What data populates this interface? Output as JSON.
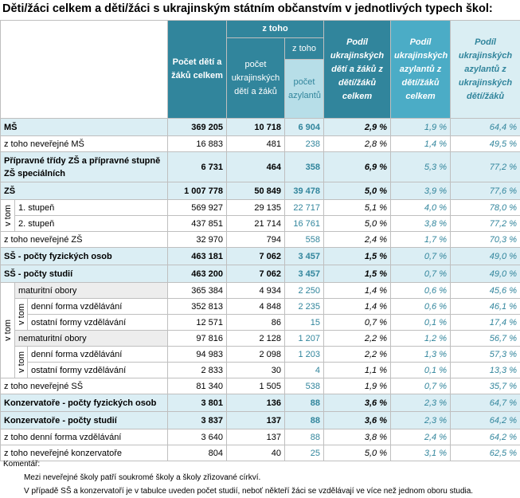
{
  "title": "Děti/žáci celkem a děti/žáci s ukrajinským státním občanstvím v jednotlivých typech škol:",
  "header": {
    "col_total": "Počet dětí a žáků celkem",
    "z_toho": "z toho",
    "col_ukr": "počet ukrajinských dětí a žáků",
    "z_toho_2": "z toho",
    "col_azyl": "počet azylantů",
    "col_share_ukr": "Podíl ukrajinských dětí a žáků z dětí/žáků celkem",
    "col_share_azyl": "Podíl ukrajinských azylantů z dětí/žáků celkem",
    "col_share_azyl_ukr": "Podíl ukrajinských azylantů z ukrajinských dětí/žáků"
  },
  "rows": [
    {
      "label": "MŠ",
      "bold": true,
      "values": [
        "369 205",
        "10 718",
        "6 904",
        "2,9 %",
        "1,9 %",
        "64,4 %"
      ]
    },
    {
      "label": "z toho neveřejné MŠ",
      "values": [
        "16 883",
        "481",
        "238",
        "2,8 %",
        "1,4 %",
        "49,5 %"
      ]
    },
    {
      "label": "Přípravné třídy ZŠ a přípravné stupně ZŠ speciálních",
      "bold": true,
      "tall": true,
      "values": [
        "6 731",
        "464",
        "358",
        "6,9 %",
        "5,3 %",
        "77,2 %"
      ]
    },
    {
      "label": "ZŠ",
      "bold": true,
      "values": [
        "1 007 778",
        "50 849",
        "39 478",
        "5,0 %",
        "3,9 %",
        "77,6 %"
      ]
    },
    {
      "group_label": "v tom",
      "rows": [
        {
          "label": "1. stupeň",
          "values": [
            "569 927",
            "29 135",
            "22 717",
            "5,1 %",
            "4,0 %",
            "78,0 %"
          ]
        },
        {
          "label": "2. stupeň",
          "values": [
            "437 851",
            "21 714",
            "16 761",
            "5,0 %",
            "3,8 %",
            "77,2 %"
          ]
        }
      ]
    },
    {
      "label": "z toho neveřejné ZŠ",
      "values": [
        "32 970",
        "794",
        "558",
        "2,4 %",
        "1,7 %",
        "70,3 %"
      ]
    },
    {
      "label": "SŠ - počty fyzických osob",
      "bold": true,
      "values": [
        "463 181",
        "7 062",
        "3 457",
        "1,5 %",
        "0,7 %",
        "49,0 %"
      ]
    },
    {
      "label": "SŠ - počty studií",
      "bold": true,
      "values": [
        "463 200",
        "7 062",
        "3 457",
        "1,5 %",
        "0,7 %",
        "49,0 %"
      ]
    },
    {
      "group_label": "v tom",
      "rows": [
        {
          "label": "maturitní obory",
          "shaded": true,
          "values": [
            "365 384",
            "4 934",
            "2 250",
            "1,4 %",
            "0,6 %",
            "45,6 %"
          ]
        },
        {
          "group_label": "v tom",
          "rows": [
            {
              "label": "denní forma vzdělávání",
              "values": [
                "352 813",
                "4 848",
                "2 235",
                "1,4 %",
                "0,6 %",
                "46,1 %"
              ]
            },
            {
              "label": "ostatní formy vzdělávání",
              "values": [
                "12 571",
                "86",
                "15",
                "0,7 %",
                "0,1 %",
                "17,4 %"
              ]
            }
          ]
        },
        {
          "label": "nematuritní obory",
          "shaded": true,
          "values": [
            "97 816",
            "2 128",
            "1 207",
            "2,2 %",
            "1,2 %",
            "56,7 %"
          ]
        },
        {
          "group_label": "v tom",
          "rows": [
            {
              "label": "denní forma vzdělávání",
              "values": [
                "94 983",
                "2 098",
                "1 203",
                "2,2 %",
                "1,3 %",
                "57,3 %"
              ]
            },
            {
              "label": "ostatní formy vzdělávání",
              "values": [
                "2 833",
                "30",
                "4",
                "1,1 %",
                "0,1 %",
                "13,3 %"
              ]
            }
          ]
        }
      ]
    },
    {
      "label": "z toho neveřejné SŠ",
      "values": [
        "81 340",
        "1 505",
        "538",
        "1,9 %",
        "0,7 %",
        "35,7 %"
      ]
    },
    {
      "label": "Konzervatoře - počty fyzických osob",
      "bold": true,
      "values": [
        "3 801",
        "136",
        "88",
        "3,6 %",
        "2,3 %",
        "64,7 %"
      ]
    },
    {
      "label": "Konzervatoře - počty studií",
      "bold": true,
      "values": [
        "3 837",
        "137",
        "88",
        "3,6 %",
        "2,3 %",
        "64,2 %"
      ]
    },
    {
      "label": "z toho denní forma vzdělávání",
      "values": [
        "3 640",
        "137",
        "88",
        "3,8 %",
        "2,4 %",
        "64,2 %"
      ]
    },
    {
      "label": "z toho neveřejné konzervatoře",
      "values": [
        "804",
        "40",
        "25",
        "5,0 %",
        "3,1 %",
        "62,5 %"
      ]
    }
  ],
  "comment": {
    "title": "Komentář:",
    "notes": [
      "Mezi neveřejné školy patří soukromé školy a školy zřizované církví.",
      "V případě SŠ a konzervatoří je v tabulce uveden počet studií, neboť někteří žáci se vzdělávají ve více než jednom oboru studia."
    ]
  }
}
